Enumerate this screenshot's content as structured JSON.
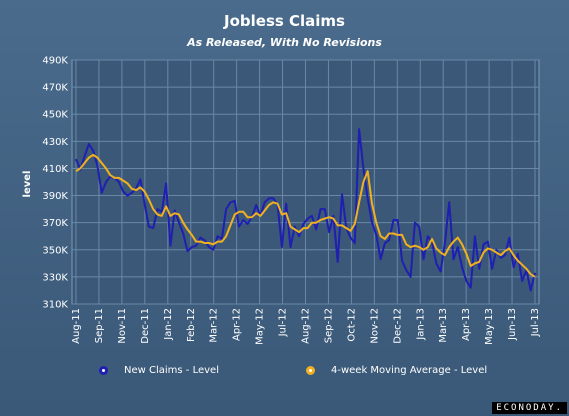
{
  "title": "Jobless Claims",
  "subtitle": "As Released, With No Revisions",
  "brand": "ECONODAY.",
  "colors": {
    "series1": "#1f1fb0",
    "series2": "#f0b020",
    "grid": "#6a88a6",
    "plot_bg": "#3b5878"
  },
  "chart_data": {
    "type": "line",
    "ylabel": "level",
    "ylim": [
      310,
      490
    ],
    "yticks": [
      310,
      330,
      350,
      370,
      390,
      410,
      430,
      450,
      470,
      490
    ],
    "ytick_labels": [
      "310K",
      "330K",
      "350K",
      "370K",
      "390K",
      "410K",
      "430K",
      "450K",
      "470K",
      "490K"
    ],
    "xtick_labels": [
      "Aug-11",
      "Sep-11",
      "Nov-11",
      "Dec-11",
      "Jan-12",
      "Feb-12",
      "Mar-12",
      "Apr-12",
      "May-12",
      "Jul-12",
      "Aug-12",
      "Sep-12",
      "Oct-12",
      "Nov-12",
      "Dec-12",
      "Jan-13",
      "Mar-13",
      "Apr-13",
      "May-13",
      "Jun-13",
      "Jul-13"
    ],
    "grid": true,
    "legend_position": "bottom",
    "series": [
      {
        "name": "New Claims - Level",
        "values": [
          417,
          409,
          419,
          428,
          423,
          412,
          392,
          400,
          404,
          403,
          400,
          393,
          390,
          392,
          395,
          402,
          384,
          367,
          366,
          380,
          378,
          399,
          353,
          379,
          370,
          362,
          349,
          352,
          353,
          359,
          357,
          352,
          350,
          360,
          358,
          380,
          385,
          386,
          367,
          372,
          369,
          374,
          383,
          375,
          385,
          388,
          388,
          383,
          352,
          384,
          352,
          367,
          360,
          369,
          373,
          375,
          365,
          380,
          380,
          363,
          375,
          341,
          391,
          366,
          359,
          355,
          439,
          410,
          388,
          370,
          361,
          343,
          355,
          357,
          372,
          372,
          342,
          335,
          330,
          370,
          367,
          343,
          360,
          356,
          340,
          334,
          355,
          385,
          343,
          352,
          337,
          327,
          322,
          360,
          336,
          354,
          356,
          336,
          350,
          344,
          346,
          359,
          337,
          347,
          327,
          335,
          320,
          333
        ]
      },
      {
        "name": "4-week Moving Average - Level",
        "values": [
          408,
          410,
          414,
          418,
          420,
          418,
          414,
          410,
          405,
          403,
          403,
          401,
          399,
          395,
          394,
          396,
          393,
          387,
          380,
          376,
          375,
          382,
          375,
          377,
          376,
          370,
          365,
          361,
          356,
          356,
          355,
          355,
          354,
          356,
          356,
          360,
          368,
          376,
          378,
          378,
          374,
          374,
          377,
          375,
          379,
          383,
          385,
          384,
          376,
          377,
          367,
          365,
          363,
          366,
          366,
          370,
          370,
          372,
          373,
          374,
          373,
          368,
          368,
          366,
          364,
          369,
          385,
          400,
          408,
          384,
          370,
          360,
          358,
          362,
          362,
          361,
          361,
          354,
          352,
          353,
          352,
          350,
          352,
          358,
          351,
          348,
          346,
          352,
          356,
          359,
          354,
          347,
          338,
          340,
          341,
          348,
          351,
          350,
          348,
          346,
          349,
          351,
          346,
          342,
          339,
          336,
          332,
          330
        ]
      }
    ]
  }
}
